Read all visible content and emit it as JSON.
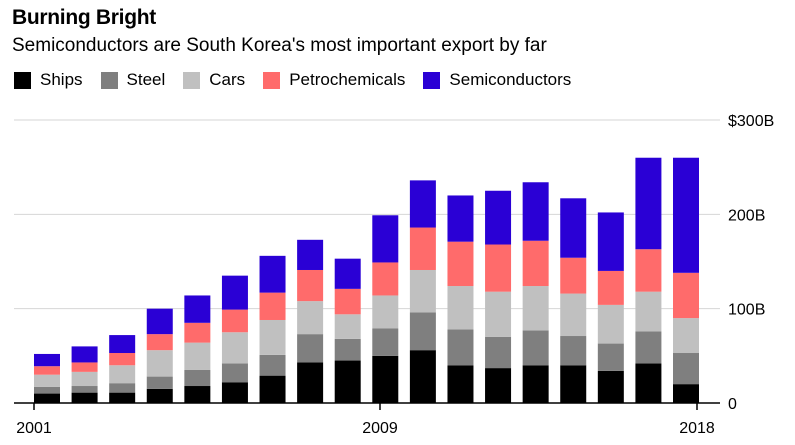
{
  "title": "Burning Bright",
  "subtitle": "Semiconductors are South Korea's most important export by far",
  "chart_data": {
    "type": "bar",
    "stacked": true,
    "title": "Burning Bright",
    "subtitle": "Semiconductors are South Korea's most important export by far",
    "xlabel": "",
    "ylabel": "",
    "ylim": [
      0,
      300
    ],
    "y_ticks": [
      0,
      100,
      200,
      300
    ],
    "y_tick_labels": [
      "0",
      "100B",
      "200B",
      "$300B"
    ],
    "x_tick_labels": [
      "2001",
      "2009",
      "2018"
    ],
    "categories": [
      "2001",
      "2002",
      "2003",
      "2004",
      "2005",
      "2006",
      "2007",
      "2008",
      "2009",
      "2010",
      "2011",
      "2012",
      "2013",
      "2014",
      "2015",
      "2016",
      "2017",
      "2018"
    ],
    "series": [
      {
        "name": "Ships",
        "color": "#000000",
        "values": [
          10,
          11,
          11,
          15,
          18,
          22,
          29,
          43,
          45,
          50,
          56,
          40,
          37,
          40,
          40,
          34,
          42,
          20
        ]
      },
      {
        "name": "Steel",
        "color": "#7f7f7f",
        "values": [
          7,
          7,
          10,
          13,
          17,
          20,
          22,
          30,
          23,
          29,
          40,
          38,
          33,
          37,
          31,
          29,
          34,
          33
        ]
      },
      {
        "name": "Cars",
        "color": "#c0c0c0",
        "values": [
          13,
          15,
          19,
          28,
          29,
          33,
          37,
          35,
          26,
          35,
          45,
          46,
          48,
          47,
          45,
          41,
          42,
          37
        ]
      },
      {
        "name": "Petrochemicals",
        "color": "#ff6b6b",
        "values": [
          9,
          10,
          13,
          17,
          21,
          24,
          29,
          33,
          27,
          35,
          45,
          47,
          50,
          48,
          38,
          36,
          45,
          48
        ]
      },
      {
        "name": "Semiconductors",
        "color": "#2a00d5",
        "values": [
          13,
          17,
          19,
          27,
          29,
          36,
          39,
          32,
          32,
          50,
          50,
          49,
          57,
          62,
          63,
          62,
          97,
          122
        ]
      }
    ]
  }
}
